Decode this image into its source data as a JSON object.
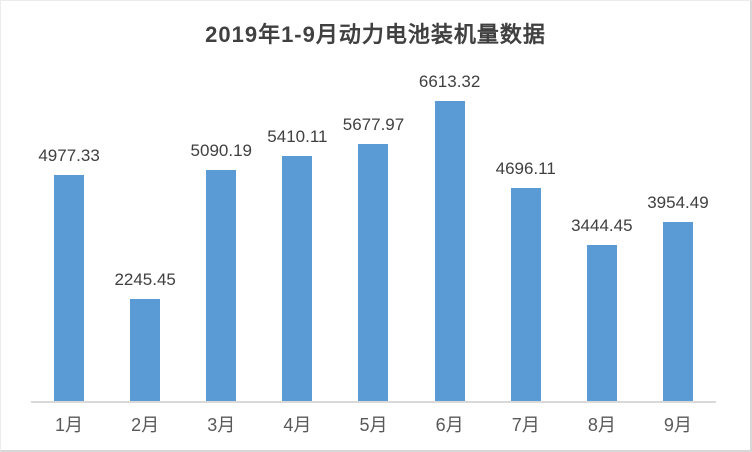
{
  "chart": {
    "title": "2019年1-9月动力电池装机量数据"
  },
  "chart_data": {
    "type": "bar",
    "title": "2019年1-9月动力电池装机量数据",
    "categories": [
      "1月",
      "2月",
      "3月",
      "4月",
      "5月",
      "6月",
      "7月",
      "8月",
      "9月"
    ],
    "values": [
      4977.33,
      2245.45,
      5090.19,
      5410.11,
      5677.97,
      6613.32,
      4696.11,
      3444.45,
      3954.49
    ],
    "value_labels": [
      "4977.33",
      "2245.45",
      "5090.19",
      "5410.11",
      "5677.97",
      "6613.32",
      "4696.11",
      "3444.45",
      "3954.49"
    ],
    "xlabel": "",
    "ylabel": "",
    "ylim": [
      0,
      7500
    ],
    "grid": false,
    "legend": false,
    "data_labels_shown": true
  },
  "colors": {
    "bar": "#5b9bd5",
    "title_text": "#404040",
    "value_label_text": "#404040",
    "axis_label_text": "#595959",
    "axis_line": "#d9d9d9",
    "background": "#ffffff"
  }
}
